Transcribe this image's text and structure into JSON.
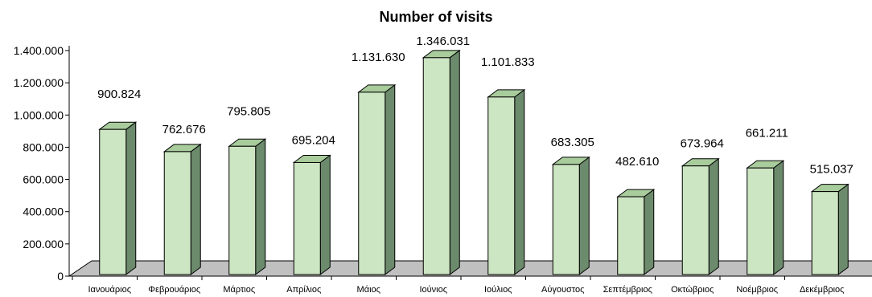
{
  "chart_data": {
    "type": "bar",
    "title": "Number of visits",
    "categories": [
      "Ιανουάριος",
      "Φεβρουάριος",
      "Μάρτιος",
      "Απρίλιος",
      "Μάιος",
      "Ιούνιος",
      "Ιούλιος",
      "Αύγουστος",
      "Σεπτέμβριος",
      "Οκτώβριος",
      "Νοέμβριος",
      "Δεκέμβριος"
    ],
    "values": [
      900824,
      762676,
      795805,
      695204,
      1131630,
      1346031,
      1101833,
      683305,
      482610,
      673964,
      661211,
      515037
    ],
    "value_labels": [
      "900.824",
      "762.676",
      "795.805",
      "695.204",
      "1.131.630",
      "1.346.031",
      "1.101.833",
      "683.305",
      "482.610",
      "673.964",
      "661.211",
      "515.037"
    ],
    "y_ticks": [
      0,
      200000,
      400000,
      600000,
      800000,
      1000000,
      1200000,
      1400000
    ],
    "y_tick_labels": [
      "0",
      "200.000",
      "400.000",
      "600.000",
      "800.000",
      "1.000.000",
      "1.200.000",
      "1.400.000"
    ],
    "ylim": [
      0,
      1400000
    ],
    "style": "3d-column",
    "grid": false,
    "legend": "none",
    "colors": {
      "bar_front": "#cce5c2",
      "bar_side": "#6c8a6c",
      "bar_top": "#a8cc9c",
      "bar_stroke": "#000000",
      "floor": "#c0c0c0"
    }
  }
}
